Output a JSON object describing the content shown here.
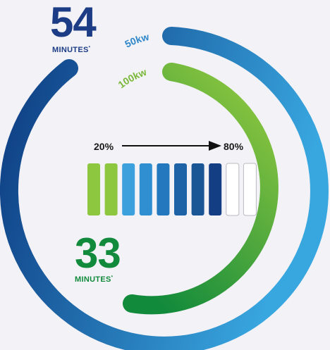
{
  "charger_50": {
    "label": "50kw",
    "minutes": "54",
    "minutes_label": "MINUTES",
    "footnote_mark": "*",
    "color_start": "#0d3a80",
    "color_end": "#38a6df"
  },
  "charger_100": {
    "label": "100kw",
    "minutes": "33",
    "minutes_label": "MINUTES",
    "footnote_mark": "*",
    "color_start": "#118a3b",
    "color_end": "#8dc63f"
  },
  "charge_range": {
    "start": "20%",
    "end": "80%"
  },
  "battery": {
    "segments": [
      {
        "state": "start-level",
        "color": "#8dc63f"
      },
      {
        "state": "start-level",
        "color": "#8dc63f"
      },
      {
        "state": "charged",
        "color": "#3ca0dc"
      },
      {
        "state": "charged",
        "color": "#2f8fd0"
      },
      {
        "state": "charged",
        "color": "#2478bd"
      },
      {
        "state": "charged",
        "color": "#1e63a6"
      },
      {
        "state": "charged",
        "color": "#1a5596"
      },
      {
        "state": "charged",
        "color": "#133e83"
      },
      {
        "state": "empty",
        "color": "#ffffff"
      },
      {
        "state": "empty",
        "color": "#ffffff"
      }
    ]
  }
}
